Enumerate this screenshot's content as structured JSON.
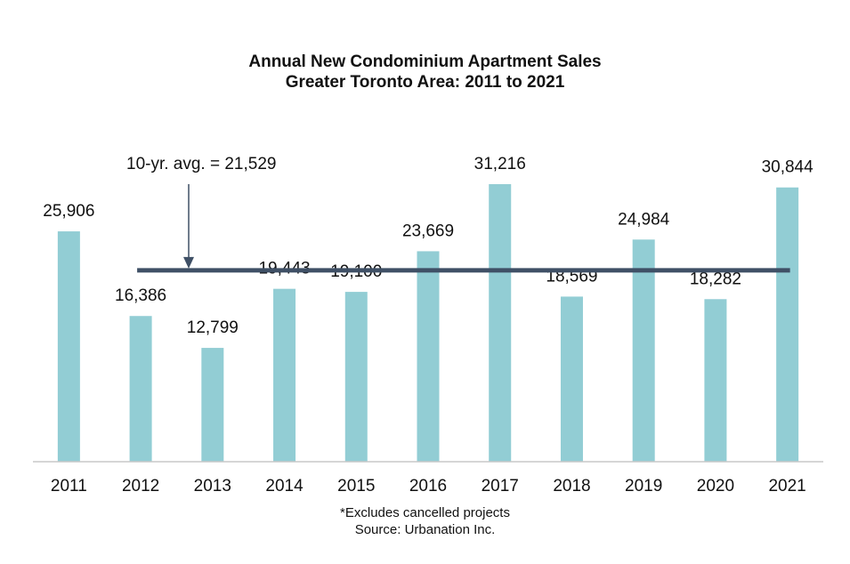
{
  "chart_data": {
    "type": "bar",
    "title": "Annual New Condominium Apartment Sales",
    "subtitle": "Greater Toronto Area: 2011 to 2021",
    "categories": [
      "2011",
      "2012",
      "2013",
      "2014",
      "2015",
      "2016",
      "2017",
      "2018",
      "2019",
      "2020",
      "2021"
    ],
    "values": [
      25906,
      16386,
      12799,
      19443,
      19100,
      23669,
      31216,
      18569,
      24984,
      18282,
      30844
    ],
    "data_labels": [
      "25,906",
      "16,386",
      "12,799",
      "19,443",
      "19,100",
      "23,669",
      "31,216",
      "18,569",
      "24,984",
      "18,282",
      "30,844"
    ],
    "ylim": [
      0,
      32000
    ],
    "grid": false,
    "reference_line": {
      "value": 21529,
      "from": "2012",
      "to": "2021",
      "label": "10-yr. avg. = 21,529"
    },
    "colors": {
      "bar": "#92CDD4",
      "avg_line": "#3F5066",
      "axis": "#C8C8C8",
      "text": "#111111"
    },
    "footnote": "*Excludes cancelled projects",
    "source": "Source: Urbanation Inc."
  }
}
